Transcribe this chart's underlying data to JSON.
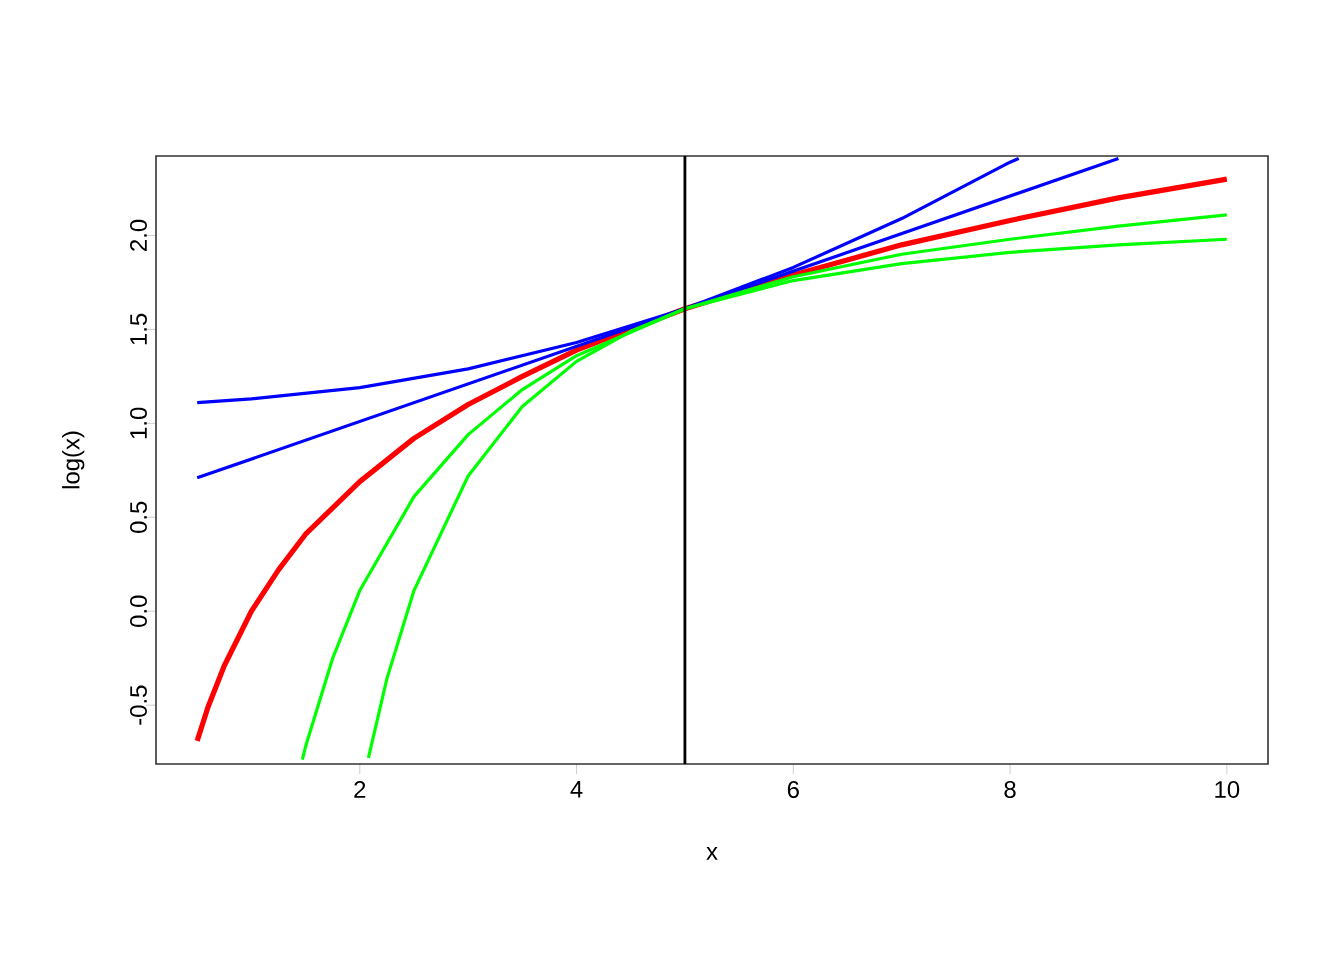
{
  "chart_data": {
    "type": "line",
    "xlabel": "x",
    "ylabel": "log(x)",
    "xlim": [
      0.12,
      10.38
    ],
    "ylim": [
      -0.813,
      2.423
    ],
    "xticks": [
      2,
      4,
      6,
      8,
      10
    ],
    "yticks": [
      -0.5,
      {
        "value": 0,
        "label": "0.0"
      },
      0.5,
      {
        "value": 1,
        "label": "1.0"
      },
      1.5,
      {
        "value": 2,
        "label": "2.0"
      }
    ],
    "series": [
      {
        "color": "#ff0000",
        "x": [
          0.5,
          0.6,
          0.75,
          1,
          1.25,
          1.5,
          2,
          2.5,
          3,
          3.5,
          4,
          5,
          6,
          7,
          8,
          9,
          10
        ],
        "values": [
          -0.69,
          -0.51,
          -0.29,
          0,
          0.22,
          0.41,
          0.69,
          0.92,
          1.1,
          1.25,
          1.39,
          1.61,
          1.79,
          1.95,
          2.08,
          2.2,
          2.3
        ]
      },
      {
        "color": "#0000ff",
        "x": [
          0.5,
          5,
          9
        ],
        "values": [
          0.71,
          1.61,
          2.41
        ]
      },
      {
        "color": "#0000ff",
        "x": [
          0.5,
          1,
          2,
          3,
          4,
          5,
          6,
          7,
          8,
          8.08
        ],
        "values": [
          1.11,
          1.13,
          1.19,
          1.29,
          1.43,
          1.61,
          1.83,
          2.09,
          2.39,
          2.41
        ]
      },
      {
        "color": "#00ff00",
        "x": [
          1.47,
          1.5,
          1.75,
          2,
          2.5,
          3,
          3.5,
          4,
          5,
          6,
          7,
          8,
          9,
          10
        ],
        "values": [
          -0.79,
          -0.72,
          -0.25,
          0.11,
          0.61,
          0.94,
          1.18,
          1.36,
          1.61,
          1.78,
          1.9,
          1.98,
          2.05,
          2.11
        ]
      },
      {
        "color": "#00ff00",
        "x": [
          2.08,
          2.25,
          2.5,
          3,
          3.5,
          4,
          4.5,
          5,
          6,
          7,
          8,
          9,
          10
        ],
        "values": [
          -0.78,
          -0.36,
          0.11,
          0.72,
          1.09,
          1.33,
          1.49,
          1.61,
          1.76,
          1.85,
          1.91,
          1.95,
          1.98
        ]
      }
    ],
    "ref_lines": [
      {
        "axis": "x",
        "value": 5,
        "color": "#000000"
      }
    ]
  }
}
